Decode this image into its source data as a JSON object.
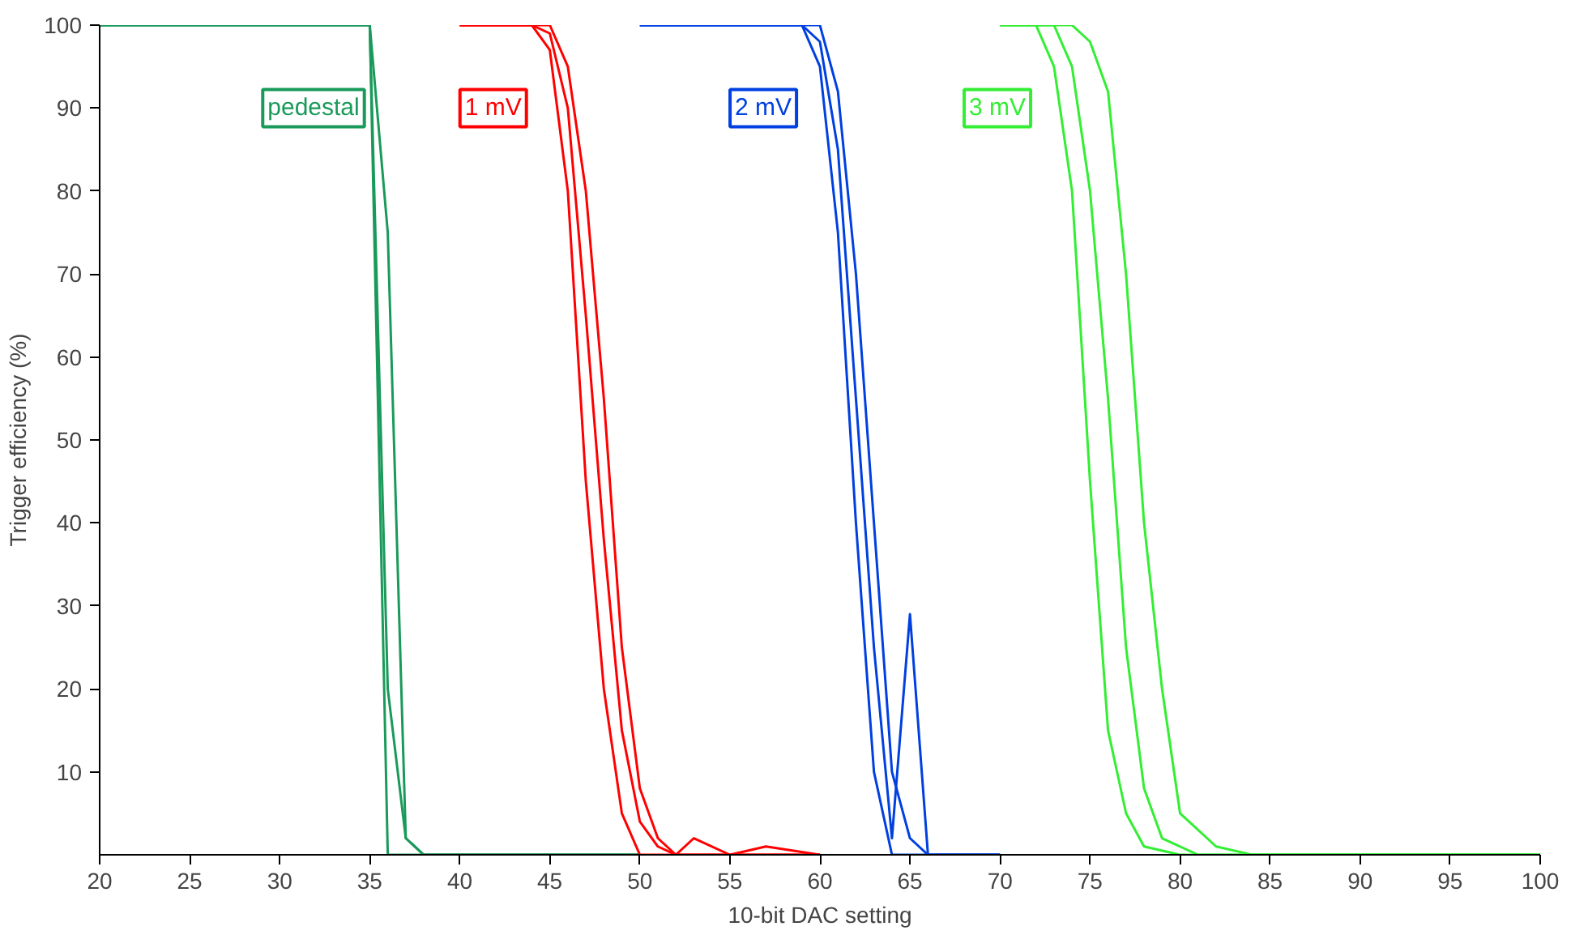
{
  "chart_data": {
    "type": "line",
    "xlabel": "10-bit DAC setting",
    "ylabel": "Trigger efficiency (%)",
    "xlim": [
      20,
      100
    ],
    "ylim": [
      0,
      100
    ],
    "xticks": [
      20,
      25,
      30,
      35,
      40,
      45,
      50,
      55,
      60,
      65,
      70,
      75,
      80,
      85,
      90,
      95,
      100
    ],
    "yticks": [
      10,
      20,
      30,
      40,
      50,
      60,
      70,
      80,
      90,
      100
    ],
    "grid": false,
    "legend": false,
    "marker": "none",
    "line_style": "solid",
    "series": [
      {
        "name": "pedestal",
        "color": "#1a9a5a",
        "x": [
          20,
          35,
          36,
          50
        ],
        "values": [
          100,
          100,
          0,
          0
        ]
      },
      {
        "color": "#1a9a5a",
        "x": [
          20,
          35,
          36,
          37,
          38,
          50
        ],
        "values": [
          100,
          100,
          20,
          2,
          0,
          0
        ]
      },
      {
        "color": "#1a9a5a",
        "x": [
          20,
          35,
          36,
          37,
          38,
          50
        ],
        "values": [
          100,
          100,
          75,
          2,
          0,
          0
        ]
      },
      {
        "name": "1 mV",
        "color": "#ff0000",
        "x": [
          40,
          44,
          45,
          46,
          47,
          48,
          49,
          50,
          60
        ],
        "values": [
          100,
          100,
          97,
          80,
          45,
          20,
          5,
          0,
          0
        ]
      },
      {
        "color": "#ff0000",
        "x": [
          40,
          44,
          45,
          46,
          47,
          48,
          49,
          50,
          51,
          52,
          60
        ],
        "values": [
          100,
          100,
          99,
          90,
          65,
          38,
          15,
          4,
          1,
          0,
          0
        ]
      },
      {
        "color": "#ff0000",
        "x": [
          40,
          45,
          46,
          47,
          48,
          49,
          50,
          51,
          52,
          53,
          55,
          57,
          60
        ],
        "values": [
          100,
          100,
          95,
          80,
          55,
          25,
          8,
          2,
          0,
          2,
          0,
          1,
          0
        ]
      },
      {
        "name": "2 mV",
        "color": "#0040e0",
        "x": [
          50,
          59,
          60,
          61,
          62,
          63,
          64,
          70
        ],
        "values": [
          100,
          100,
          95,
          75,
          40,
          10,
          0,
          0
        ]
      },
      {
        "color": "#0040e0",
        "x": [
          50,
          59,
          60,
          61,
          62,
          63,
          64,
          65,
          66,
          70
        ],
        "values": [
          100,
          100,
          98,
          85,
          55,
          25,
          2,
          29,
          0,
          0
        ]
      },
      {
        "color": "#0040e0",
        "x": [
          50,
          60,
          61,
          62,
          63,
          64,
          65,
          66,
          70
        ],
        "values": [
          100,
          100,
          92,
          70,
          40,
          10,
          2,
          0,
          0
        ]
      },
      {
        "name": "3 mV",
        "color": "#33ee33",
        "x": [
          70,
          72,
          73,
          74,
          75,
          76,
          77,
          78,
          80,
          100
        ],
        "values": [
          100,
          100,
          95,
          80,
          45,
          15,
          5,
          1,
          0,
          0
        ]
      },
      {
        "color": "#33ee33",
        "x": [
          70,
          73,
          74,
          75,
          76,
          77,
          78,
          79,
          81,
          100
        ],
        "values": [
          100,
          100,
          95,
          80,
          55,
          25,
          8,
          2,
          0,
          0
        ]
      },
      {
        "color": "#33ee33",
        "x": [
          70,
          74,
          75,
          76,
          77,
          78,
          79,
          80,
          82,
          84,
          100
        ],
        "values": [
          100,
          100,
          98,
          92,
          70,
          40,
          20,
          5,
          1,
          0,
          0
        ]
      }
    ]
  }
}
